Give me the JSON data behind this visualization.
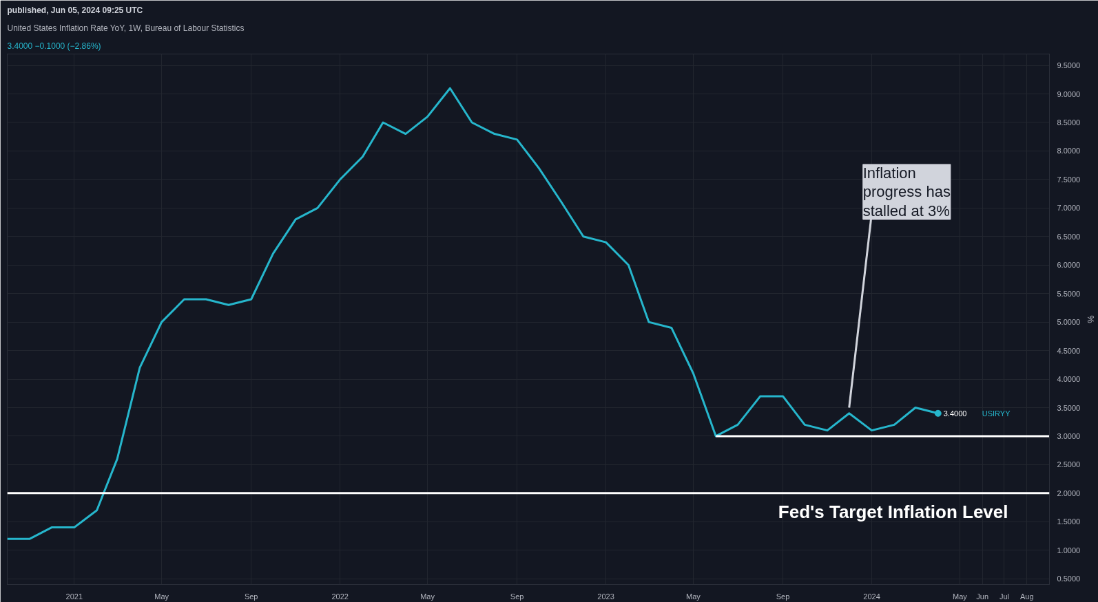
{
  "chart_data": {
    "type": "line",
    "title": "United States Inflation Rate YoY, 1W, Bureau of Labour Statistics",
    "subtitle": "3.4000  −0.1000 (−2.86%)",
    "ylabel": "%",
    "annotations": [
      "published, Jun 05, 2024 09:25 UTC",
      {
        "text": "Inflation\nprogress has\nstalled at 3%",
        "x": "2023-12",
        "y": 3.4
      }
    ],
    "series": [
      {
        "name": "USIRYY",
        "color": "#26b6cc",
        "x": [
          "2020-10",
          "2020-11",
          "2020-12",
          "2021-01",
          "2021-02",
          "2021-03",
          "2021-04",
          "2021-05",
          "2021-06",
          "2021-07",
          "2021-08",
          "2021-09",
          "2021-10",
          "2021-11",
          "2021-12",
          "2022-01",
          "2022-02",
          "2022-03",
          "2022-04",
          "2022-05",
          "2022-06",
          "2022-07",
          "2022-08",
          "2022-09",
          "2022-10",
          "2022-11",
          "2022-12",
          "2023-01",
          "2023-02",
          "2023-03",
          "2023-04",
          "2023-05",
          "2023-06",
          "2023-07",
          "2023-08",
          "2023-09",
          "2023-10",
          "2023-11",
          "2023-12",
          "2024-01",
          "2024-02",
          "2024-03",
          "2024-04"
        ],
        "values": [
          1.2,
          1.2,
          1.4,
          1.4,
          1.7,
          2.6,
          4.2,
          5.0,
          5.4,
          5.4,
          5.3,
          5.4,
          6.2,
          6.8,
          7.0,
          7.5,
          7.9,
          8.5,
          8.3,
          8.6,
          9.1,
          8.5,
          8.3,
          8.2,
          7.7,
          7.1,
          6.5,
          6.4,
          6.0,
          5.0,
          4.9,
          4.1,
          3.0,
          3.2,
          3.7,
          3.7,
          3.2,
          3.1,
          3.4,
          3.1,
          3.2,
          3.5,
          3.4
        ],
        "value_labels": [
          null,
          null,
          null,
          null,
          null,
          null,
          null,
          null,
          null,
          null,
          null,
          null,
          null,
          null,
          null,
          null,
          null,
          null,
          null,
          null,
          null,
          null,
          null,
          null,
          null,
          null,
          null,
          null,
          null,
          null,
          null,
          null,
          null,
          null,
          null,
          null,
          null,
          null,
          null,
          null,
          null,
          null,
          "3.4000"
        ]
      },
      {
        "type": "line",
        "color": "#ffffff",
        "x": [
          "2023-06",
          "2024-09"
        ],
        "values": [
          3.0,
          3.0
        ]
      }
    ],
    "ref_lines": [
      {
        "axis": "y",
        "value": 2.0,
        "label": "Fed's Target Inflation Level",
        "color": "#ffffff"
      }
    ],
    "xlim": [
      "2020-10",
      "2024-09"
    ],
    "xticks": [
      {
        "value": "2021-01",
        "label": "2021"
      },
      {
        "value": "2021-05",
        "label": "May"
      },
      {
        "value": "2021-09",
        "label": "Sep"
      },
      {
        "value": "2022-01",
        "label": "2022"
      },
      {
        "value": "2022-05",
        "label": "May"
      },
      {
        "value": "2022-09",
        "label": "Sep"
      },
      {
        "value": "2023-01",
        "label": "2023"
      },
      {
        "value": "2023-05",
        "label": "May"
      },
      {
        "value": "2023-09",
        "label": "Sep"
      },
      {
        "value": "2024-01",
        "label": "2024"
      },
      {
        "value": "2024-05",
        "label": "May"
      },
      {
        "value": "2024-06",
        "label": "Jun"
      },
      {
        "value": "2024-07",
        "label": "Jul"
      },
      {
        "value": "2024-08",
        "label": "Aug"
      }
    ],
    "ylim": [
      0.4,
      9.7
    ],
    "yticks": [
      {
        "value": 0.5,
        "label": "0.5000"
      },
      {
        "value": 1.0,
        "label": "1.0000"
      },
      {
        "value": 1.5,
        "label": "1.5000"
      },
      {
        "value": 2.0,
        "label": "2.0000"
      },
      {
        "value": 2.5,
        "label": "2.5000"
      },
      {
        "value": 3.0,
        "label": "3.0000"
      },
      {
        "value": 3.5,
        "label": "3.5000"
      },
      {
        "value": 4.0,
        "label": "4.0000"
      },
      {
        "value": 4.5,
        "label": "4.5000"
      },
      {
        "value": 5.0,
        "label": "5.0000"
      },
      {
        "value": 5.5,
        "label": "5.5000"
      },
      {
        "value": 6.0,
        "label": "6.0000"
      },
      {
        "value": 6.5,
        "label": "6.5000"
      },
      {
        "value": 7.0,
        "label": "7.0000"
      },
      {
        "value": 7.5,
        "label": "7.5000"
      },
      {
        "value": 8.0,
        "label": "8.0000"
      },
      {
        "value": 8.5,
        "label": "8.5000"
      },
      {
        "value": 9.0,
        "label": "9.0000"
      },
      {
        "value": 9.5,
        "label": "9.5000"
      }
    ],
    "grid": true,
    "marker": "none",
    "line_style": "solid"
  }
}
